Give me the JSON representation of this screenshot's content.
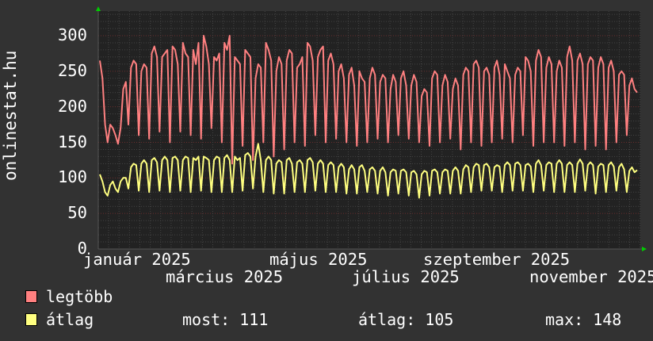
{
  "chart_data": {
    "type": "line",
    "ylabel": "onlinestat.hu",
    "ylim": [
      0,
      300
    ],
    "yticks": [
      "0",
      "50",
      "100",
      "150",
      "200",
      "250",
      "300"
    ],
    "xlabels": [
      "január 2025",
      "március 2025",
      "május 2025",
      "július 2025",
      "szeptember 2025",
      "november 2025"
    ],
    "grid": true,
    "legend_position": "bottom-left",
    "series": [
      {
        "name": "legtöbb",
        "color": "#ff8080",
        "values": [
          265,
          240,
          175,
          150,
          175,
          170,
          160,
          148,
          170,
          225,
          235,
          175,
          255,
          265,
          260,
          160,
          250,
          260,
          255,
          155,
          275,
          285,
          270,
          165,
          270,
          275,
          280,
          150,
          285,
          280,
          260,
          165,
          290,
          275,
          270,
          160,
          280,
          260,
          290,
          155,
          300,
          285,
          260,
          170,
          270,
          265,
          275,
          150,
          290,
          280,
          300,
          120,
          270,
          265,
          260,
          145,
          280,
          275,
          270,
          125,
          240,
          260,
          255,
          150,
          290,
          280,
          265,
          130,
          250,
          270,
          260,
          140,
          265,
          280,
          275,
          150,
          255,
          260,
          270,
          145,
          290,
          285,
          265,
          160,
          270,
          280,
          285,
          150,
          265,
          275,
          260,
          155,
          250,
          260,
          240,
          150,
          245,
          255,
          230,
          145,
          250,
          240,
          235,
          150,
          240,
          255,
          245,
          155,
          235,
          245,
          240,
          150,
          225,
          245,
          235,
          160,
          240,
          250,
          230,
          155,
          230,
          245,
          235,
          150,
          215,
          225,
          220,
          145,
          240,
          250,
          245,
          150,
          230,
          245,
          235,
          155,
          225,
          240,
          230,
          140,
          245,
          255,
          250,
          150,
          260,
          265,
          255,
          145,
          250,
          255,
          245,
          150,
          255,
          265,
          245,
          155,
          260,
          250,
          240,
          150,
          245,
          255,
          250,
          160,
          270,
          265,
          250,
          145,
          265,
          280,
          270,
          150,
          255,
          270,
          260,
          150,
          250,
          265,
          255,
          145,
          270,
          285,
          265,
          150,
          265,
          275,
          260,
          140,
          260,
          270,
          265,
          145,
          255,
          270,
          260,
          140,
          255,
          265,
          250,
          150,
          245,
          250,
          245,
          160,
          230,
          240,
          225,
          220
        ]
      },
      {
        "name": "átlag",
        "color": "#ffff80",
        "values": [
          105,
          95,
          80,
          75,
          90,
          95,
          85,
          80,
          95,
          100,
          100,
          85,
          115,
          120,
          118,
          82,
          120,
          125,
          120,
          80,
          125,
          128,
          122,
          82,
          125,
          130,
          125,
          80,
          128,
          130,
          125,
          82,
          125,
          130,
          128,
          80,
          128,
          125,
          130,
          82,
          130,
          128,
          125,
          80,
          125,
          130,
          128,
          80,
          128,
          132,
          125,
          80,
          130,
          125,
          128,
          82,
          132,
          135,
          130,
          85,
          130,
          148,
          125,
          80,
          125,
          130,
          125,
          78,
          120,
          125,
          122,
          78,
          125,
          128,
          120,
          80,
          122,
          125,
          120,
          80,
          125,
          128,
          122,
          82,
          120,
          125,
          120,
          80,
          118,
          122,
          118,
          80,
          115,
          120,
          115,
          78,
          112,
          118,
          112,
          78,
          115,
          118,
          110,
          80,
          112,
          115,
          110,
          78,
          110,
          115,
          108,
          75,
          108,
          112,
          110,
          78,
          110,
          112,
          108,
          75,
          108,
          110,
          105,
          72,
          105,
          110,
          108,
          75,
          110,
          112,
          108,
          78,
          108,
          112,
          110,
          78,
          110,
          115,
          110,
          78,
          112,
          118,
          115,
          80,
          115,
          120,
          118,
          82,
          118,
          120,
          115,
          82,
          115,
          118,
          116,
          80,
          118,
          122,
          118,
          82,
          120,
          122,
          118,
          82,
          118,
          120,
          116,
          80,
          120,
          125,
          118,
          82,
          118,
          122,
          120,
          80,
          120,
          125,
          120,
          80,
          118,
          122,
          118,
          80,
          120,
          126,
          120,
          82,
          118,
          122,
          118,
          78,
          116,
          120,
          118,
          80,
          118,
          122,
          116,
          82,
          115,
          120,
          112,
          80,
          110,
          115,
          108,
          111
        ]
      }
    ]
  },
  "legend": {
    "max_label": "legtöbb",
    "avg_label": "átlag",
    "current": "most: 111",
    "average": "átlag: 105",
    "maximum": "max: 148"
  }
}
